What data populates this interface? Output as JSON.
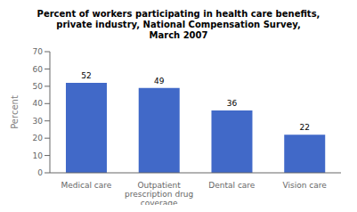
{
  "chart_data": {
    "type": "bar",
    "title": "Percent of workers participating in health care benefits,\nprivate industry, National Compensation Survey,\nMarch 2007",
    "categories": [
      "Medical care",
      "Outpatient\nprescription drug\ncoverage",
      "Dental care",
      "Vision care"
    ],
    "values": [
      52,
      49,
      36,
      22
    ],
    "color": "#4169c8",
    "ylabel": "Percent",
    "ylim": [
      0,
      70
    ],
    "yticks": [
      0,
      10,
      20,
      30,
      40,
      50,
      60,
      70
    ],
    "grid": false,
    "data_labels": true
  }
}
